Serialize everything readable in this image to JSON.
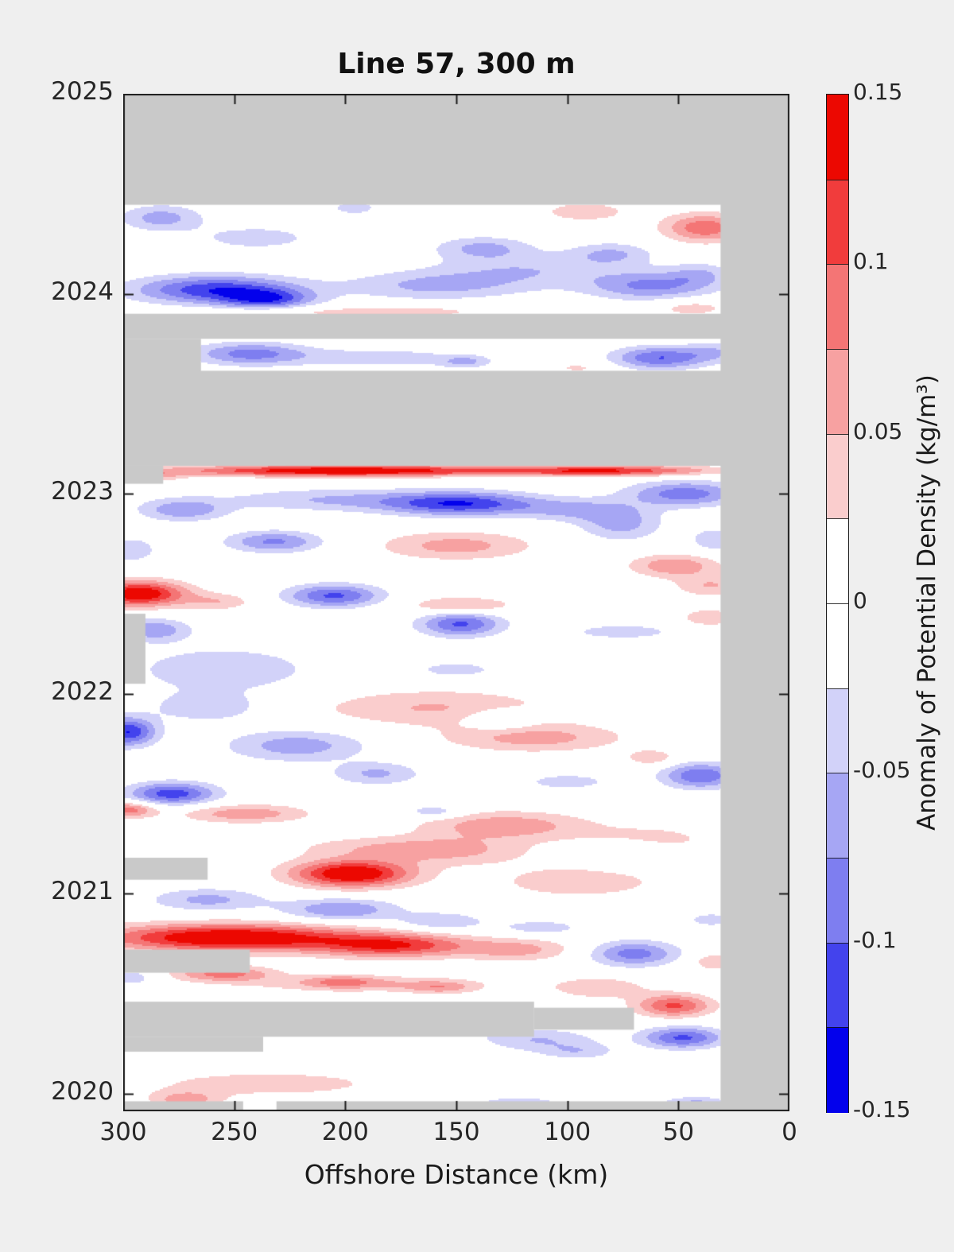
{
  "figure": {
    "background": "#EFEFEF",
    "plot_background": "#FFFFFF",
    "axis_color": "#1a1a1a"
  },
  "chart_data": {
    "type": "heatmap",
    "title": "Line 57, 300 m",
    "xlabel": "Offshore Distance (km)",
    "x_ticks": [
      300,
      250,
      200,
      150,
      100,
      50,
      0
    ],
    "x_tick_labels": [
      "300",
      "250",
      "200",
      "150",
      "100",
      "50",
      "0"
    ],
    "y_ticks": [
      2025,
      2024,
      2023,
      2022,
      2021,
      2020
    ],
    "y_tick_labels": [
      "2025",
      "2024",
      "2023",
      "2022",
      "2021",
      "2020"
    ],
    "x_range_km": [
      300,
      0
    ],
    "t_top": 2025.0,
    "t_bottom": 2019.912,
    "grid": false,
    "colorbar": {
      "label": "Anomaly of Potential Density (kg/m³)",
      "ticks": [
        0.15,
        0.1,
        0.05,
        0,
        -0.05,
        -0.1,
        -0.15
      ],
      "tick_labels": [
        "0.15",
        "0.1",
        "0.05",
        "0",
        "-0.05",
        "-0.1",
        "-0.15"
      ],
      "range": [
        -0.15,
        0.15
      ],
      "level_step": 0.025
    },
    "colors": {
      "positive": [
        "#FACDCD",
        "#F7A1A1",
        "#F47575",
        "#F13C3C",
        "#EC0801"
      ],
      "negative": [
        "#D2D2F9",
        "#A6A6F4",
        "#7E7EF0",
        "#4343ED",
        "#0301EC"
      ],
      "zero": "#FFFFFF",
      "missing": "#C9C9C9"
    },
    "blob_format": "[offshore_km, year, sigma_km, sigma_yr, amplitude_kg_m3]",
    "field_blobs": [
      [
        283,
        2024.38,
        13,
        0.045,
        -0.062
      ],
      [
        240,
        2024.28,
        22,
        0.05,
        -0.035
      ],
      [
        196,
        2024.43,
        9,
        0.03,
        -0.035
      ],
      [
        258,
        2024.02,
        26,
        0.05,
        -0.12
      ],
      [
        235,
        2023.97,
        14,
        0.035,
        -0.09
      ],
      [
        160,
        2024.04,
        28,
        0.05,
        -0.055
      ],
      [
        118,
        2024.12,
        30,
        0.06,
        -0.045
      ],
      [
        138,
        2024.23,
        15,
        0.04,
        -0.055
      ],
      [
        62,
        2024.04,
        20,
        0.05,
        -0.08
      ],
      [
        40,
        2024.1,
        10,
        0.04,
        -0.04
      ],
      [
        38,
        2024.33,
        13,
        0.05,
        0.095
      ],
      [
        92,
        2024.41,
        16,
        0.04,
        0.038
      ],
      [
        215,
        2023.91,
        35,
        0.022,
        0.032
      ],
      [
        165,
        2023.91,
        20,
        0.02,
        0.03
      ],
      [
        44,
        2023.93,
        12,
        0.03,
        0.04
      ],
      [
        80,
        2024.2,
        13,
        0.04,
        -0.05
      ],
      [
        243,
        2023.7,
        18,
        0.04,
        -0.085
      ],
      [
        185,
        2023.68,
        28,
        0.035,
        -0.04
      ],
      [
        146,
        2023.66,
        8,
        0.022,
        -0.05
      ],
      [
        58,
        2023.68,
        15,
        0.04,
        -0.1
      ],
      [
        33,
        2023.71,
        9,
        0.035,
        -0.04
      ],
      [
        95,
        2023.63,
        10,
        0.022,
        0.03
      ],
      [
        200,
        2023.115,
        52,
        0.02,
        0.16
      ],
      [
        82,
        2023.115,
        33,
        0.019,
        0.12
      ],
      [
        287,
        2023.09,
        10,
        0.022,
        0.05
      ],
      [
        148,
        2022.95,
        24,
        0.042,
        -0.12
      ],
      [
        207,
        2022.97,
        33,
        0.04,
        -0.05
      ],
      [
        273,
        2022.92,
        14,
        0.04,
        -0.07
      ],
      [
        47,
        2023.0,
        18,
        0.045,
        -0.09
      ],
      [
        97,
        2022.92,
        18,
        0.04,
        -0.05
      ],
      [
        232,
        2022.76,
        15,
        0.038,
        -0.08
      ],
      [
        150,
        2022.74,
        24,
        0.05,
        0.062
      ],
      [
        76,
        2022.85,
        13,
        0.06,
        -0.06
      ],
      [
        52,
        2022.64,
        14,
        0.04,
        0.072
      ],
      [
        33,
        2022.77,
        8,
        0.04,
        -0.05
      ],
      [
        296,
        2022.72,
        9,
        0.05,
        -0.04
      ],
      [
        293,
        2022.5,
        15,
        0.045,
        0.155
      ],
      [
        257,
        2022.46,
        11,
        0.03,
        0.045
      ],
      [
        205,
        2022.49,
        15,
        0.04,
        -0.105
      ],
      [
        148,
        2022.44,
        17,
        0.032,
        0.058
      ],
      [
        35,
        2022.54,
        12,
        0.04,
        0.05
      ],
      [
        148,
        2022.35,
        13,
        0.045,
        -0.105
      ],
      [
        286,
        2022.32,
        11,
        0.04,
        -0.07
      ],
      [
        75,
        2022.31,
        18,
        0.028,
        -0.04
      ],
      [
        36,
        2022.38,
        10,
        0.035,
        0.042
      ],
      [
        255,
        2022.12,
        32,
        0.09,
        -0.042
      ],
      [
        150,
        2022.12,
        13,
        0.028,
        -0.04
      ],
      [
        160,
        2021.93,
        38,
        0.065,
        0.052
      ],
      [
        115,
        2021.78,
        28,
        0.05,
        0.062
      ],
      [
        130,
        2021.87,
        11,
        0.038,
        -0.048
      ],
      [
        298,
        2021.81,
        9,
        0.05,
        -0.125
      ],
      [
        262,
        2021.93,
        17,
        0.05,
        -0.045
      ],
      [
        222,
        2021.74,
        22,
        0.055,
        -0.065
      ],
      [
        186,
        2021.6,
        14,
        0.04,
        -0.055
      ],
      [
        40,
        2021.59,
        12,
        0.045,
        -0.1
      ],
      [
        62,
        2021.68,
        8,
        0.028,
        0.045
      ],
      [
        100,
        2021.56,
        14,
        0.028,
        -0.04
      ],
      [
        278,
        2021.5,
        14,
        0.04,
        -0.115
      ],
      [
        298,
        2021.42,
        9,
        0.028,
        0.09
      ],
      [
        245,
        2021.4,
        20,
        0.033,
        0.068
      ],
      [
        160,
        2021.41,
        9,
        0.022,
        -0.048
      ],
      [
        128,
        2021.34,
        26,
        0.05,
        0.07
      ],
      [
        185,
        2021.23,
        28,
        0.04,
        0.04
      ],
      [
        62,
        2021.27,
        22,
        0.055,
        0.035
      ],
      [
        197,
        2021.1,
        19,
        0.048,
        0.16
      ],
      [
        150,
        2021.21,
        24,
        0.05,
        0.045
      ],
      [
        95,
        2021.06,
        28,
        0.06,
        0.042
      ],
      [
        72,
        2021.2,
        13,
        0.045,
        -0.038
      ],
      [
        262,
        2020.97,
        18,
        0.04,
        -0.058
      ],
      [
        202,
        2020.92,
        18,
        0.04,
        -0.075
      ],
      [
        157,
        2020.86,
        14,
        0.033,
        -0.05
      ],
      [
        112,
        2020.83,
        14,
        0.028,
        -0.04
      ],
      [
        35,
        2020.87,
        8,
        0.025,
        -0.04
      ],
      [
        252,
        2020.78,
        40,
        0.048,
        0.165
      ],
      [
        178,
        2020.74,
        24,
        0.042,
        0.115
      ],
      [
        122,
        2020.72,
        18,
        0.04,
        0.058
      ],
      [
        255,
        2020.6,
        16,
        0.028,
        0.085
      ],
      [
        70,
        2020.7,
        14,
        0.045,
        -0.088
      ],
      [
        33,
        2020.66,
        8,
        0.03,
        0.05
      ],
      [
        192,
        2020.55,
        38,
        0.03,
        0.048
      ],
      [
        202,
        2020.56,
        11,
        0.022,
        0.05
      ],
      [
        157,
        2020.53,
        11,
        0.022,
        0.05
      ],
      [
        296,
        2020.58,
        8,
        0.03,
        -0.04
      ],
      [
        52,
        2020.44,
        12,
        0.04,
        0.105
      ],
      [
        86,
        2020.53,
        16,
        0.04,
        0.045
      ],
      [
        166,
        2020.36,
        18,
        0.042,
        -0.09
      ],
      [
        113,
        2020.27,
        18,
        0.04,
        -0.05
      ],
      [
        48,
        2020.28,
        13,
        0.038,
        -0.105
      ],
      [
        95,
        2020.21,
        12,
        0.028,
        -0.04
      ],
      [
        235,
        2020.05,
        42,
        0.05,
        0.038
      ],
      [
        272,
        2019.97,
        11,
        0.03,
        0.062
      ],
      [
        122,
        2019.94,
        14,
        0.03,
        -0.055
      ],
      [
        42,
        2019.94,
        11,
        0.03,
        -0.07
      ]
    ],
    "missing_region_format": "[km_min, km_max, t_min, t_max]",
    "missing_regions": [
      [
        0,
        300,
        2024.445,
        2025.02
      ],
      [
        0,
        300,
        2023.775,
        2023.9
      ],
      [
        265,
        300,
        2023.6,
        2023.775
      ],
      [
        0,
        300,
        2023.14,
        2023.615
      ],
      [
        282,
        300,
        2023.05,
        2023.14
      ],
      [
        290,
        300,
        2022.05,
        2022.4
      ],
      [
        262,
        300,
        2021.07,
        2021.18
      ],
      [
        243,
        300,
        2020.605,
        2020.72
      ],
      [
        115,
        300,
        2020.285,
        2020.46
      ],
      [
        70,
        115,
        2020.32,
        2020.43
      ],
      [
        237,
        300,
        2020.21,
        2020.285
      ],
      [
        0,
        231,
        2019.9,
        2019.962
      ],
      [
        246,
        300,
        2019.9,
        2019.962
      ],
      [
        0,
        31,
        2019.9,
        2025.02
      ]
    ]
  }
}
